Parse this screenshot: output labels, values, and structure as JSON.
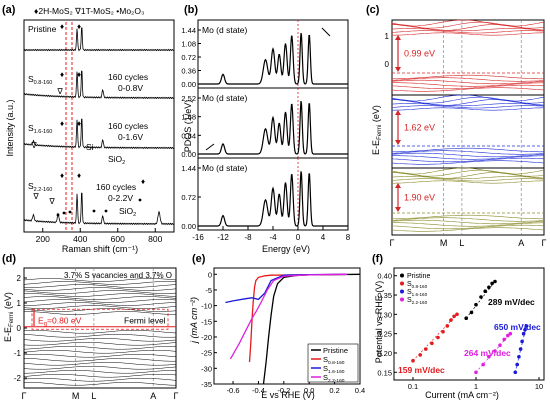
{
  "panels": {
    "a": {
      "letter": "(a)",
      "legend": [
        "♦ 2H-MoS",
        "₂",
        " ∇1T-MoS",
        "₂",
        " • Mo",
        "₂",
        "O",
        "₃"
      ],
      "legend_text": "♦2H-MoS₂ ∇1T-MoS₂ •Mo₂O₃",
      "ylabel": "Intensity (a.u.)",
      "xlabel": "Raman shift (cm⁻¹)",
      "xticks": [
        "200",
        "400",
        "600",
        "800"
      ],
      "traces": [
        {
          "label": "Pristine",
          "sub": ""
        },
        {
          "label": "S",
          "sub": "0.8-160",
          "cycles": "160 cycles",
          "range": "0-0.8V"
        },
        {
          "label": "S",
          "sub": "1.6-160",
          "cycles": "160 cycles",
          "range": "0-1.6V"
        },
        {
          "label": "S",
          "sub": "2.2-160",
          "cycles": "160 cycles",
          "range": "0-2.2V"
        }
      ],
      "annotations": [
        "Si",
        "SiO",
        "SiO"
      ]
    },
    "b": {
      "letter": "(b)",
      "ylabel": "PDOS (1/eV)",
      "xlabel": "Energy (eV)",
      "xticks": [
        "-16",
        "-12",
        "-8",
        "-4",
        "0",
        "4",
        "8"
      ],
      "subplots": [
        {
          "label": "Mo (d state)",
          "yticks": [
            "0.00",
            "0.36",
            "0.72",
            "1.08",
            "1.44"
          ]
        },
        {
          "label": "Mo (d state)",
          "yticks": [
            "0.00",
            "0.84",
            "1.68",
            "2.52"
          ]
        },
        {
          "label": "Mo (d state)",
          "yticks": [
            "0.00",
            "0.72",
            "1.44"
          ]
        }
      ]
    },
    "c": {
      "letter": "(c)",
      "ylabel": "E-E",
      "ylabel_sub": "Fermi",
      "ylabel_unit": " (eV)",
      "yticks": [
        "0",
        "1"
      ],
      "gaps": [
        "0.99 eV",
        "1.62 eV",
        "1.90 eV"
      ],
      "kpoints": [
        "Γ",
        "M",
        "L",
        "A",
        "Γ"
      ],
      "colors": [
        "#d62728",
        "#1f2fd6",
        "#8a8a2a"
      ]
    },
    "d": {
      "letter": "(d)",
      "title": "3.7% S vacancies and 3.7% O",
      "ylabel": "E-E",
      "ylabel_sub": "Fermi",
      "ylabel_unit": " (eV)",
      "yticks": [
        "-2",
        "-1",
        "0",
        "1",
        "2"
      ],
      "gap": "E",
      "gap_sub": "g",
      "gap_val": "=0.80 eV",
      "fermi": "Fermi level",
      "kpoints": [
        "Γ",
        "M",
        "L",
        "A",
        "Γ"
      ]
    },
    "e": {
      "letter": "(e)",
      "ylabel": "j (mA cm⁻²)",
      "xlabel": "E vs RHE (V)",
      "xticks": [
        "-0.6",
        "-0.4",
        "-0.2",
        "0.0",
        "0.2",
        "0.4"
      ],
      "yticks": [
        "-35",
        "-30",
        "-25",
        "-20",
        "-15",
        "-10",
        "-5",
        "0"
      ],
      "legend": [
        {
          "name": "Pristine",
          "sub": "",
          "color": "#000000"
        },
        {
          "name": "S",
          "sub": "0.8-160",
          "color": "#e41a1c"
        },
        {
          "name": "S",
          "sub": "1.6-160",
          "color": "#1a1adb"
        },
        {
          "name": "S",
          "sub": "2.2-160",
          "color": "#e020e0"
        }
      ]
    },
    "f": {
      "letter": "(f)",
      "ylabel": "Potential vs RHE (V)",
      "xlabel": "Current (mA cm⁻²)",
      "yticks": [
        "0.15",
        "0.20",
        "0.25",
        "0.30",
        "0.35",
        "0.40"
      ],
      "xticks": [
        "0.1",
        "1",
        "10"
      ],
      "slopes": [
        "289 mV/dec",
        "650 mV/dec",
        "264 mV/dec",
        "159 mV/dec"
      ],
      "legend": [
        {
          "name": "Pristine",
          "sub": "",
          "color": "#000000"
        },
        {
          "name": "S",
          "sub": "0.8-160",
          "color": "#e41a1c"
        },
        {
          "name": "S",
          "sub": "1.6-160",
          "color": "#1a1adb"
        },
        {
          "name": "S",
          "sub": "2.2-160",
          "color": "#e020e0"
        }
      ]
    }
  },
  "chart_data": [
    {
      "type": "line",
      "panel": "e",
      "xlabel": "E vs RHE (V)",
      "ylabel": "j (mA cm⁻²)",
      "xlim": [
        -0.75,
        0.4
      ],
      "ylim": [
        -35,
        2
      ],
      "series": [
        {
          "name": "Pristine",
          "x": [
            -0.36,
            -0.34,
            -0.32,
            -0.3,
            -0.28,
            -0.25,
            -0.2,
            -0.1,
            0.0,
            0.2,
            0.4
          ],
          "y": [
            -35,
            -28,
            -20,
            -13,
            -7,
            -3,
            -1,
            -0.4,
            -0.2,
            -0.1,
            0
          ]
        },
        {
          "name": "S0.8-160",
          "x": [
            -0.47,
            -0.46,
            -0.45,
            -0.44,
            -0.43,
            -0.42,
            -0.4,
            -0.35,
            -0.3,
            -0.1,
            0.3
          ],
          "y": [
            -28,
            -22,
            -14,
            -8,
            -4,
            -2,
            -1,
            -0.5,
            -0.3,
            -0.2,
            0
          ]
        },
        {
          "name": "S1.6-160",
          "x": [
            -0.66,
            -0.6,
            -0.5,
            -0.45,
            -0.4,
            -0.35,
            -0.3,
            -0.2,
            0.0,
            0.3
          ],
          "y": [
            -9,
            -8.5,
            -7.8,
            -7.5,
            -8,
            -6,
            -2,
            -0.3,
            -0.1,
            0
          ]
        },
        {
          "name": "S2.2-160",
          "x": [
            -0.62,
            -0.55,
            -0.5,
            -0.45,
            -0.42,
            -0.38,
            -0.33,
            -0.28,
            -0.2,
            0.0,
            0.3
          ],
          "y": [
            -27,
            -22,
            -18,
            -14,
            -12,
            -9,
            -5,
            -2,
            -0.6,
            -0.2,
            0
          ]
        }
      ]
    },
    {
      "type": "scatter",
      "panel": "f",
      "xlabel": "Current (mA cm⁻²)",
      "ylabel": "Potential vs RHE (V)",
      "xscale": "log",
      "xlim": [
        0.05,
        12
      ],
      "ylim": [
        0.13,
        0.42
      ],
      "series": [
        {
          "name": "Pristine",
          "x": [
            0.7,
            0.85,
            1,
            1.2,
            1.4,
            1.6,
            1.8,
            2.0
          ],
          "y": [
            0.29,
            0.305,
            0.325,
            0.345,
            0.36,
            0.37,
            0.38,
            0.385
          ]
        },
        {
          "name": "S0.8-160",
          "x": [
            0.1,
            0.13,
            0.16,
            0.2,
            0.25,
            0.3,
            0.35,
            0.4,
            0.45,
            0.5
          ],
          "y": [
            0.18,
            0.195,
            0.21,
            0.225,
            0.24,
            0.255,
            0.27,
            0.285,
            0.295,
            0.3
          ]
        },
        {
          "name": "S1.6-160",
          "x": [
            4.2,
            4.5,
            4.8,
            5.1,
            5.4,
            5.7,
            6.0,
            6.3
          ],
          "y": [
            0.15,
            0.17,
            0.19,
            0.21,
            0.23,
            0.25,
            0.26,
            0.27
          ]
        },
        {
          "name": "S2.2-160",
          "x": [
            1.0,
            1.3,
            1.6,
            2.0,
            2.4,
            2.8,
            3.2,
            3.5
          ],
          "y": [
            0.15,
            0.17,
            0.19,
            0.205,
            0.22,
            0.235,
            0.245,
            0.25
          ]
        }
      ]
    }
  ]
}
